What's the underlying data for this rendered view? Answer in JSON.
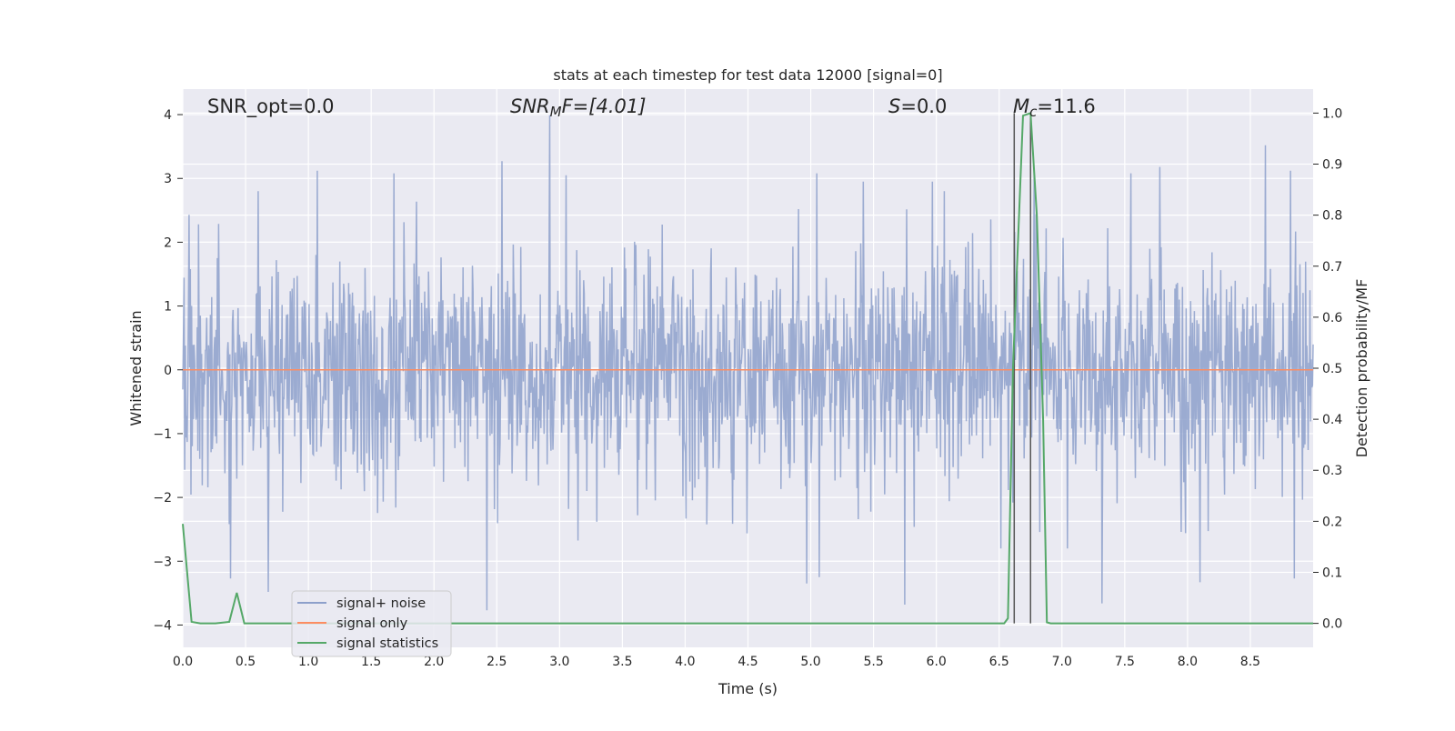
{
  "chart_data": {
    "type": "line",
    "title": "stats at each timestep for test data 12000 [signal=0]",
    "xlabel": "Time (s)",
    "ylabel": "Whitened strain",
    "ylabel_right": "Detection probability/MF",
    "xlim": [
      0.0,
      9.0
    ],
    "ylim": [
      -4.35,
      4.4
    ],
    "ylim_right": [
      -0.047,
      1.047
    ],
    "x_ticks": [
      "0.0",
      "0.5",
      "1.0",
      "1.5",
      "2.0",
      "2.5",
      "3.0",
      "3.5",
      "4.0",
      "4.5",
      "5.0",
      "5.5",
      "6.0",
      "6.5",
      "7.0",
      "7.5",
      "8.0",
      "8.5"
    ],
    "y_ticks": [
      "4",
      "3",
      "2",
      "1",
      "0",
      "−1",
      "−2",
      "−3",
      "−4"
    ],
    "y_right_ticks": [
      "1.0",
      "0.9",
      "0.8",
      "0.7",
      "0.6",
      "0.5",
      "0.4",
      "0.3",
      "0.2",
      "0.1",
      "0.0"
    ],
    "grid": true,
    "legend_position": "lower-left",
    "annotations": [
      {
        "id": "snr_opt",
        "text": "SNR_opt=0.0"
      },
      {
        "id": "snr_mf",
        "prefix": "SNR",
        "sub": "M",
        "suffix": "F=[4.01]"
      },
      {
        "id": "s",
        "prefix": "S",
        "suffix": "=0.0"
      },
      {
        "id": "mc",
        "prefix": "M",
        "sub": "c",
        "suffix": "=11.6"
      }
    ],
    "vertical_lines_x": [
      6.62,
      6.75
    ],
    "series": [
      {
        "name": "signal+ noise",
        "color": "#8da0cb",
        "axis": "left",
        "description": "whitened noise time series, roughly +/-2 amplitude with spikes up to ~4 and down to ~-3.8",
        "spikes": [
          [
            0.05,
            2.43
          ],
          [
            1.07,
            3.12
          ],
          [
            1.68,
            3.08
          ],
          [
            2.54,
            3.27
          ],
          [
            2.92,
            3.99
          ],
          [
            3.05,
            3.05
          ],
          [
            5.05,
            3.08
          ],
          [
            5.42,
            2.95
          ],
          [
            5.97,
            2.95
          ],
          [
            6.78,
            3.14
          ],
          [
            7.55,
            3.08
          ],
          [
            7.78,
            3.18
          ],
          [
            8.62,
            3.52
          ],
          [
            8.82,
            3.12
          ],
          [
            0.38,
            -3.27
          ],
          [
            0.68,
            -3.48
          ],
          [
            2.42,
            -3.77
          ],
          [
            4.97,
            -3.35
          ],
          [
            5.07,
            -3.25
          ],
          [
            5.75,
            -3.68
          ],
          [
            7.32,
            -3.66
          ],
          [
            8.1,
            -3.33
          ],
          [
            8.85,
            -3.27
          ]
        ]
      },
      {
        "name": "signal only",
        "color": "#fc8d62",
        "axis": "left",
        "x": [
          0.0,
          9.0
        ],
        "y": [
          0.0,
          0.0
        ]
      },
      {
        "name": "signal statistics",
        "color": "#55a868",
        "axis": "right",
        "x": [
          0.0,
          0.07,
          0.14,
          0.26,
          0.37,
          0.43,
          0.49,
          0.6,
          6.54,
          6.57,
          6.61,
          6.69,
          6.75,
          6.8,
          6.85,
          6.88,
          6.91,
          9.0
        ],
        "y": [
          0.195,
          0.003,
          0.0,
          0.0,
          0.003,
          0.06,
          0.0,
          0.0,
          0.0,
          0.01,
          0.5,
          0.995,
          1.0,
          0.8,
          0.4,
          0.002,
          0.0,
          0.0
        ]
      }
    ]
  }
}
